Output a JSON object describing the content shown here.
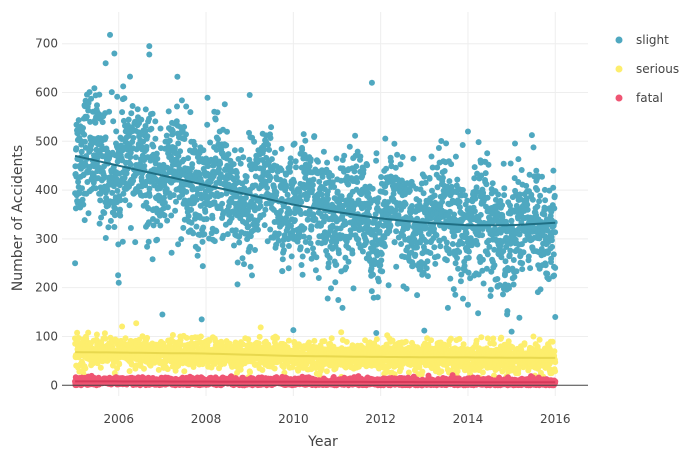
{
  "chart_data": {
    "type": "scatter",
    "xlabel": "Year",
    "ylabel": "Number of Accidents",
    "xlim": [
      2004.7,
      2016.75
    ],
    "ylim": [
      -22,
      765
    ],
    "x_ticks": [
      2006,
      2008,
      2010,
      2012,
      2014,
      2016
    ],
    "y_ticks": [
      0,
      100,
      200,
      300,
      400,
      500,
      600,
      700
    ],
    "x_tick_labels": [
      "2006",
      "2008",
      "2010",
      "2012",
      "2014",
      "2016"
    ],
    "y_tick_labels": [
      "0",
      "100",
      "200",
      "300",
      "400",
      "500",
      "600",
      "700"
    ],
    "grid": true,
    "legend_position": "top-right",
    "x_range_data": [
      2005.0,
      2016.0
    ],
    "series": [
      {
        "name": "slight",
        "color": "#4fa8c0",
        "trend_color": "#1f6f84",
        "trend": {
          "x": [
            2005.0,
            2006.0,
            2007.0,
            2008.0,
            2009.0,
            2010.0,
            2011.0,
            2012.0,
            2013.0,
            2014.0,
            2015.0,
            2016.0
          ],
          "y": [
            470,
            450,
            430,
            410,
            390,
            370,
            355,
            342,
            333,
            328,
            328,
            333
          ]
        },
        "spread": 60,
        "outliers": [
          {
            "x": 2005.8,
            "y": 718
          },
          {
            "x": 2006.7,
            "y": 695
          },
          {
            "x": 2005.9,
            "y": 680
          },
          {
            "x": 2006.7,
            "y": 678
          },
          {
            "x": 2005.7,
            "y": 660
          },
          {
            "x": 2011.8,
            "y": 620
          },
          {
            "x": 2005.0,
            "y": 250
          },
          {
            "x": 2006.0,
            "y": 210
          },
          {
            "x": 2007.0,
            "y": 145
          },
          {
            "x": 2007.9,
            "y": 135
          },
          {
            "x": 2010.0,
            "y": 113
          },
          {
            "x": 2011.9,
            "y": 107
          },
          {
            "x": 2013.0,
            "y": 112
          },
          {
            "x": 2014.0,
            "y": 165
          },
          {
            "x": 2016.0,
            "y": 140
          },
          {
            "x": 2015.0,
            "y": 110
          },
          {
            "x": 2009.0,
            "y": 595
          },
          {
            "x": 2014.0,
            "y": 520
          }
        ]
      },
      {
        "name": "serious",
        "color": "#fdee6d",
        "trend_color": "#e8d84e",
        "trend": {
          "x": [
            2005.0,
            2008.0,
            2010.0,
            2012.0,
            2016.0
          ],
          "y": [
            68,
            65,
            60,
            58,
            56
          ]
        },
        "spread": 15,
        "outliers": [
          {
            "x": 2006.4,
            "y": 127
          },
          {
            "x": 2005.3,
            "y": 108
          },
          {
            "x": 2015.5,
            "y": 100
          }
        ]
      },
      {
        "name": "fatal",
        "color": "#ef5573",
        "trend_color": "#d63a5a",
        "trend": {
          "x": [
            2005.0,
            2016.0
          ],
          "y": [
            8,
            6
          ]
        },
        "spread": 4,
        "outliers": []
      }
    ]
  },
  "legend": {
    "items": [
      {
        "label": "slight",
        "color": "#4fa8c0"
      },
      {
        "label": "serious",
        "color": "#fdee6d"
      },
      {
        "label": "fatal",
        "color": "#ef5573"
      }
    ]
  }
}
